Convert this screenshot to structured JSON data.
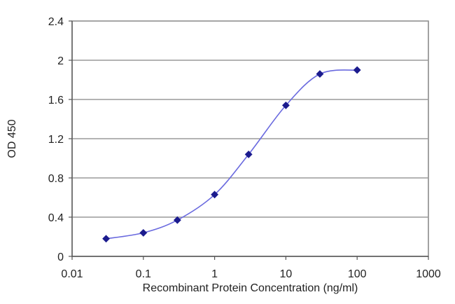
{
  "chart_data": {
    "type": "line",
    "title": "",
    "xlabel": "Recombinant Protein Concentration (ng/ml)",
    "ylabel": "OD 450",
    "xscale": "log",
    "xlim": [
      0.01,
      1000
    ],
    "ylim": [
      0,
      2.4
    ],
    "x_ticks": [
      0.01,
      0.1,
      1,
      10,
      100,
      1000
    ],
    "x_tick_labels": [
      "0.01",
      "0.1",
      "1",
      "10",
      "100",
      "1000"
    ],
    "y_ticks": [
      0,
      0.4,
      0.8,
      1.2,
      1.6,
      2,
      2.4
    ],
    "y_tick_labels": [
      "0",
      "0.4",
      "0.8",
      "1.2",
      "1.6",
      "2",
      "2.4"
    ],
    "grid": "horizontal",
    "legend": "none",
    "series": [
      {
        "x": [
          0.03,
          0.1,
          0.3,
          1,
          3,
          10,
          30,
          100
        ],
        "y": [
          0.18,
          0.24,
          0.37,
          0.63,
          1.04,
          1.54,
          1.86,
          1.9
        ],
        "color": "#6a6adf",
        "marker_color": "#1b1b8e"
      }
    ]
  }
}
